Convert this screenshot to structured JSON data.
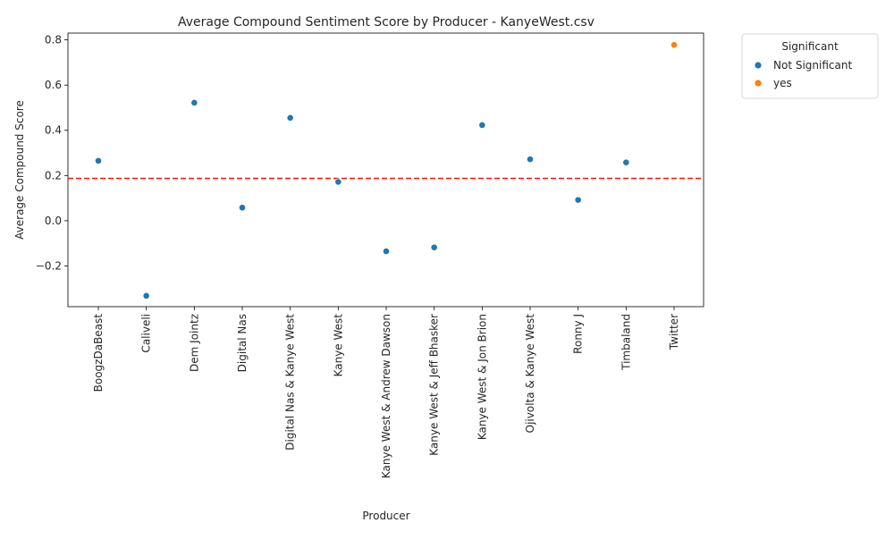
{
  "chart_data": {
    "type": "scatter",
    "title": "Average Compound Sentiment Score by Producer - KanyeWest.csv",
    "xlabel": "Producer",
    "ylabel": "Average Compound Score",
    "ylim": [
      -0.38,
      0.83
    ],
    "yticks": [
      -0.2,
      0.0,
      0.2,
      0.4,
      0.6,
      0.8
    ],
    "ytick_labels": [
      "−0.2",
      "0.0",
      "0.2",
      "0.4",
      "0.6",
      "0.8"
    ],
    "grid": false,
    "reference_line": {
      "y": 0.187,
      "style": "dashed",
      "color": "#e8231c"
    },
    "categories": [
      "BoogzDaBeast",
      "Caliveli",
      "Dem Jointz",
      "Digital Nas",
      "Digital Nas & Kanye West",
      "Kanye West",
      "Kanye West & Andrew Dawson",
      "Kanye West & Jeff Bhasker",
      "Kanye West & Jon Brion",
      "Ojivolta & Kanye West",
      "Ronny J",
      "Timbaland",
      "Twitter"
    ],
    "series": [
      {
        "name": "Not Significant",
        "color": "#1f77b4",
        "points": [
          {
            "x": "BoogzDaBeast",
            "y": 0.265
          },
          {
            "x": "Caliveli",
            "y": -0.332
          },
          {
            "x": "Dem Jointz",
            "y": 0.522
          },
          {
            "x": "Digital Nas",
            "y": 0.058
          },
          {
            "x": "Digital Nas & Kanye West",
            "y": 0.455
          },
          {
            "x": "Kanye West",
            "y": 0.172
          },
          {
            "x": "Kanye West & Andrew Dawson",
            "y": -0.135
          },
          {
            "x": "Kanye West & Jeff Bhasker",
            "y": -0.118
          },
          {
            "x": "Kanye West & Jon Brion",
            "y": 0.423
          },
          {
            "x": "Ojivolta & Kanye West",
            "y": 0.272
          },
          {
            "x": "Ronny J",
            "y": 0.092
          },
          {
            "x": "Timbaland",
            "y": 0.258
          }
        ]
      },
      {
        "name": "yes",
        "color": "#ff7f0e",
        "points": [
          {
            "x": "Twitter",
            "y": 0.778
          }
        ]
      }
    ],
    "legend": {
      "title": "Significant",
      "placement": "outside-top-right"
    }
  }
}
